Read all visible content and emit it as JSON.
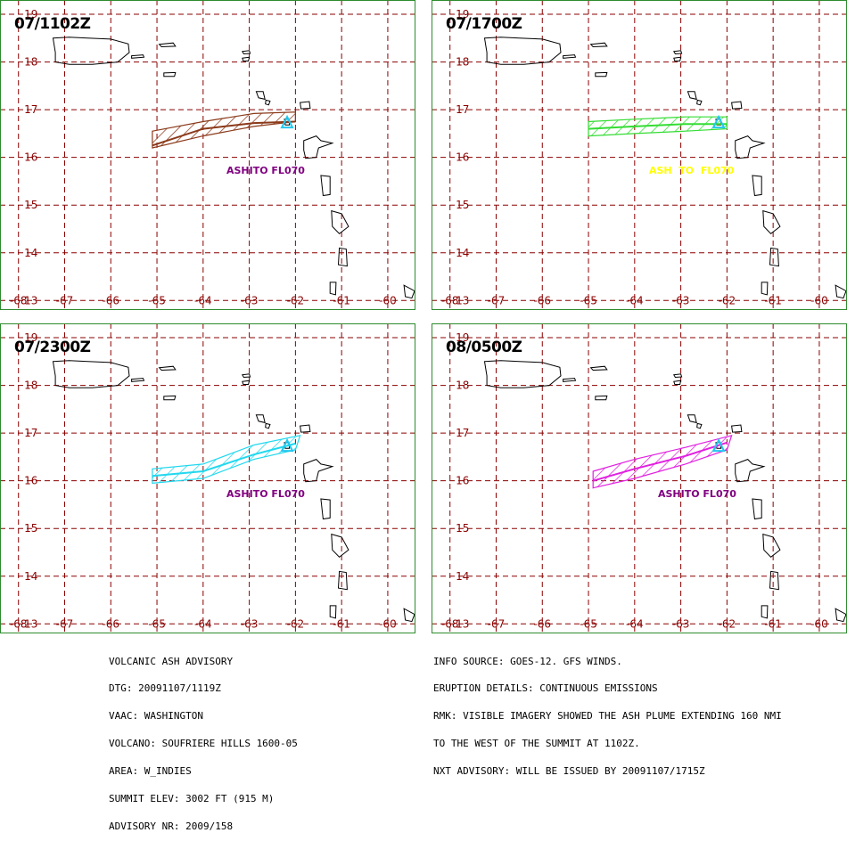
{
  "panels": [
    {
      "time": "07/1102Z",
      "plume_color": "#8b3a1a",
      "label": "ASHITO FL070",
      "label_color": "#800080",
      "plume_polygon": [
        [
          -65.1,
          16.2
        ],
        [
          -64.0,
          16.45
        ],
        [
          -62.9,
          16.65
        ],
        [
          -62.0,
          16.75
        ],
        [
          -62.0,
          16.95
        ],
        [
          -62.9,
          16.92
        ],
        [
          -64.0,
          16.75
        ],
        [
          -65.1,
          16.55
        ]
      ],
      "plume_axis": [
        [
          -65.1,
          16.25
        ],
        [
          -64.0,
          16.6
        ],
        [
          -62.9,
          16.72
        ],
        [
          -62.0,
          16.75
        ]
      ]
    },
    {
      "time": "07/1700Z",
      "plume_color": "#33dd33",
      "label": "ASH  TO  FL070",
      "label_color": "#ffff00",
      "plume_polygon": [
        [
          -65.0,
          16.45
        ],
        [
          -64.0,
          16.5
        ],
        [
          -62.9,
          16.55
        ],
        [
          -62.0,
          16.6
        ],
        [
          -62.0,
          16.85
        ],
        [
          -62.9,
          16.85
        ],
        [
          -64.0,
          16.8
        ],
        [
          -65.0,
          16.75
        ]
      ],
      "plume_axis": [
        [
          -65.0,
          16.6
        ],
        [
          -64.0,
          16.65
        ],
        [
          -62.9,
          16.7
        ],
        [
          -62.0,
          16.7
        ]
      ]
    },
    {
      "time": "07/2300Z",
      "plume_color": "#22d8ee",
      "label": "ASHITO FL070",
      "label_color": "#800080",
      "plume_polygon": [
        [
          -65.1,
          15.95
        ],
        [
          -64.0,
          16.05
        ],
        [
          -62.9,
          16.45
        ],
        [
          -62.0,
          16.65
        ],
        [
          -61.9,
          16.95
        ],
        [
          -62.9,
          16.75
        ],
        [
          -64.0,
          16.35
        ],
        [
          -65.1,
          16.25
        ]
      ],
      "plume_axis": [
        [
          -65.1,
          16.1
        ],
        [
          -64.0,
          16.2
        ],
        [
          -62.9,
          16.55
        ],
        [
          -62.0,
          16.78
        ]
      ]
    },
    {
      "time": "08/0500Z",
      "plume_color": "#e020e0",
      "label": "ASHITO FL070",
      "label_color": "#800080",
      "plume_polygon": [
        [
          -64.9,
          15.85
        ],
        [
          -64.0,
          16.05
        ],
        [
          -62.9,
          16.35
        ],
        [
          -62.0,
          16.65
        ],
        [
          -61.9,
          16.95
        ],
        [
          -62.9,
          16.7
        ],
        [
          -64.0,
          16.45
        ],
        [
          -64.9,
          16.2
        ]
      ],
      "plume_axis": [
        [
          -64.9,
          16.0
        ],
        [
          -64.0,
          16.25
        ],
        [
          -62.9,
          16.52
        ],
        [
          -62.0,
          16.8
        ]
      ]
    }
  ],
  "map": {
    "lon_min": -68.4,
    "lon_max": -59.4,
    "lat_min": 12.8,
    "lat_max": 19.3,
    "lon_ticks": [
      -68,
      -67,
      -66,
      -65,
      -64,
      -63,
      -62,
      -61,
      -60
    ],
    "lat_ticks": [
      13,
      14,
      15,
      16,
      17,
      18,
      19
    ],
    "grid_color": "#8b0000",
    "frame_color": "#2e8b2e",
    "volcano": [
      -62.18,
      16.72
    ],
    "volcano_color": "#22c8ee"
  },
  "advisory_left": [
    "VOLCANIC ASH ADVISORY",
    "DTG: 20091107/1119Z",
    "VAAC: WASHINGTON",
    "VOLCANO: SOUFRIERE HILLS 1600-05",
    "AREA: W_INDIES",
    "SUMMIT ELEV: 3002 FT (915 M)",
    "ADVISORY NR: 2009/158"
  ],
  "advisory_right": [
    "INFO SOURCE: GOES-12. GFS WINDS.",
    "ERUPTION DETAILS: CONTINUOUS EMISSIONS",
    "RMK: VISIBLE IMAGERY SHOWED THE ASH PLUME EXTENDING 160 NMI",
    "TO THE WEST OF THE SUMMIT AT 1102Z.",
    "NXT ADVISORY: WILL BE ISSUED BY 20091107/1715Z"
  ]
}
